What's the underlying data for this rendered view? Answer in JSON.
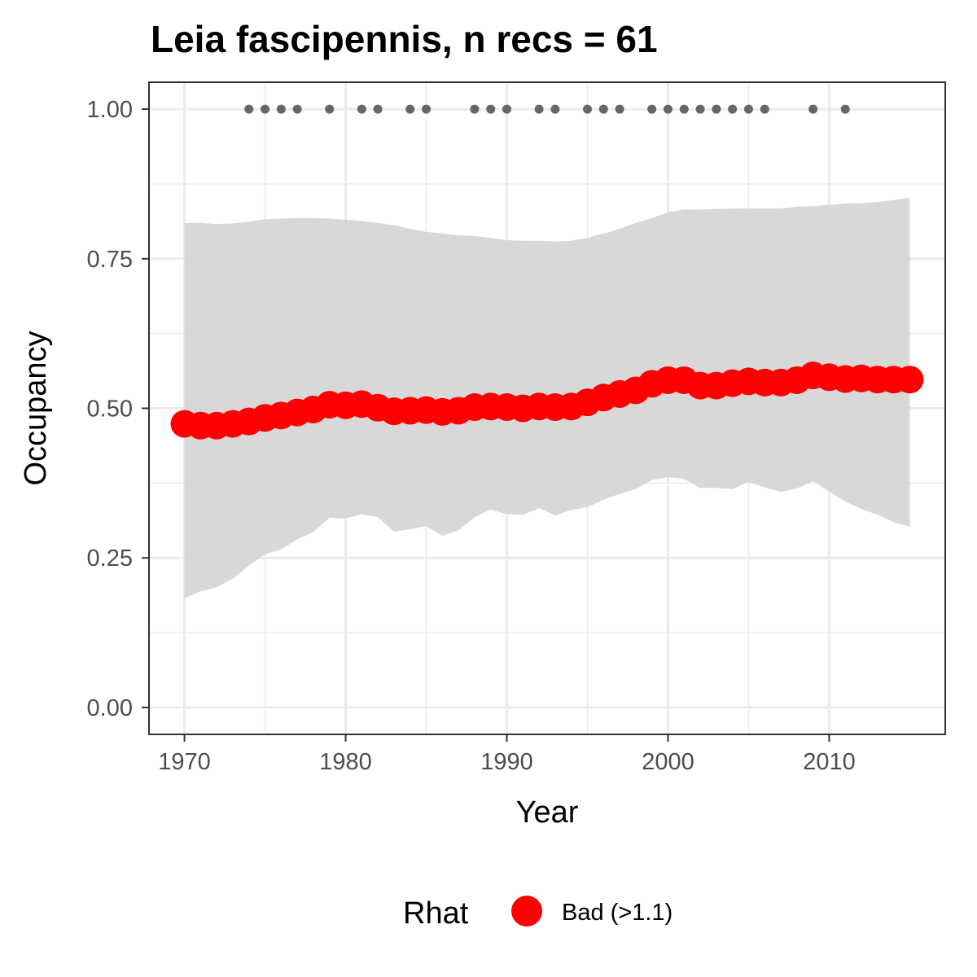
{
  "chart_data": {
    "type": "line",
    "title": "Leia fascipennis, n recs = 61",
    "xlabel": "Year",
    "ylabel": "Occupancy",
    "xlim": [
      1967.8,
      2017.2
    ],
    "ylim": [
      -0.045,
      1.045
    ],
    "x_ticks": [
      1970,
      1980,
      1990,
      2000,
      2010
    ],
    "x_tick_labels": [
      "1970",
      "1980",
      "1990",
      "2000",
      "2010"
    ],
    "y_ticks": [
      0,
      0.25,
      0.5,
      0.75,
      1.0
    ],
    "y_tick_labels": [
      "0.00",
      "0.25",
      "0.50",
      "0.75",
      "1.00"
    ],
    "grid": true,
    "legend": {
      "position": "bottom",
      "title": "Rhat",
      "entries": [
        {
          "label": "Bad (>1.1)",
          "color": "#ff0000"
        }
      ]
    },
    "colors": {
      "points": "#ff0000",
      "ribbon": "#d6d6d6",
      "records": "#666666",
      "grid": "#ebebeb",
      "panel_border": "#333333"
    },
    "series": [
      {
        "name": "Bad (>1.1)",
        "x": [
          1970,
          1971,
          1972,
          1973,
          1974,
          1975,
          1976,
          1977,
          1978,
          1979,
          1980,
          1981,
          1982,
          1983,
          1984,
          1985,
          1986,
          1987,
          1988,
          1989,
          1990,
          1991,
          1992,
          1993,
          1994,
          1995,
          1996,
          1997,
          1998,
          1999,
          2000,
          2001,
          2002,
          2003,
          2004,
          2005,
          2006,
          2007,
          2008,
          2009,
          2010,
          2011,
          2012,
          2013,
          2014,
          2015
        ],
        "y": [
          0.474,
          0.471,
          0.471,
          0.474,
          0.478,
          0.484,
          0.488,
          0.493,
          0.498,
          0.506,
          0.505,
          0.507,
          0.501,
          0.495,
          0.496,
          0.497,
          0.494,
          0.496,
          0.502,
          0.503,
          0.502,
          0.5,
          0.503,
          0.502,
          0.503,
          0.51,
          0.518,
          0.524,
          0.53,
          0.541,
          0.547,
          0.547,
          0.538,
          0.538,
          0.542,
          0.545,
          0.543,
          0.543,
          0.547,
          0.555,
          0.552,
          0.549,
          0.55,
          0.548,
          0.548,
          0.548
        ]
      }
    ],
    "ribbon": {
      "x": [
        1970,
        1971,
        1972,
        1973,
        1974,
        1975,
        1976,
        1977,
        1978,
        1979,
        1980,
        1981,
        1982,
        1983,
        1984,
        1985,
        1986,
        1987,
        1988,
        1989,
        1990,
        1991,
        1992,
        1993,
        1994,
        1995,
        1996,
        1997,
        1998,
        1999,
        2000,
        2001,
        2002,
        2003,
        2004,
        2005,
        2006,
        2007,
        2008,
        2009,
        2010,
        2011,
        2012,
        2013,
        2014,
        2015
      ],
      "upper": [
        0.81,
        0.81,
        0.808,
        0.809,
        0.812,
        0.816,
        0.817,
        0.818,
        0.818,
        0.817,
        0.815,
        0.813,
        0.81,
        0.806,
        0.8,
        0.795,
        0.792,
        0.789,
        0.788,
        0.785,
        0.781,
        0.78,
        0.78,
        0.779,
        0.78,
        0.785,
        0.792,
        0.8,
        0.81,
        0.818,
        0.828,
        0.832,
        0.832,
        0.833,
        0.834,
        0.834,
        0.834,
        0.834,
        0.837,
        0.838,
        0.84,
        0.842,
        0.843,
        0.845,
        0.848,
        0.852
      ],
      "lower": [
        0.183,
        0.194,
        0.201,
        0.215,
        0.237,
        0.256,
        0.264,
        0.281,
        0.293,
        0.317,
        0.316,
        0.323,
        0.318,
        0.294,
        0.298,
        0.303,
        0.287,
        0.296,
        0.318,
        0.331,
        0.323,
        0.322,
        0.333,
        0.321,
        0.33,
        0.335,
        0.347,
        0.357,
        0.365,
        0.38,
        0.385,
        0.382,
        0.367,
        0.367,
        0.365,
        0.377,
        0.368,
        0.36,
        0.366,
        0.378,
        0.361,
        0.344,
        0.332,
        0.322,
        0.31,
        0.302
      ]
    },
    "records": {
      "y": 1.0,
      "x": [
        1974,
        1975,
        1976,
        1977,
        1979,
        1981,
        1982,
        1984,
        1985,
        1988,
        1989,
        1990,
        1992,
        1993,
        1995,
        1996,
        1997,
        1999,
        2000,
        2001,
        2002,
        2003,
        2004,
        2005,
        2006,
        2009,
        2011
      ]
    }
  }
}
